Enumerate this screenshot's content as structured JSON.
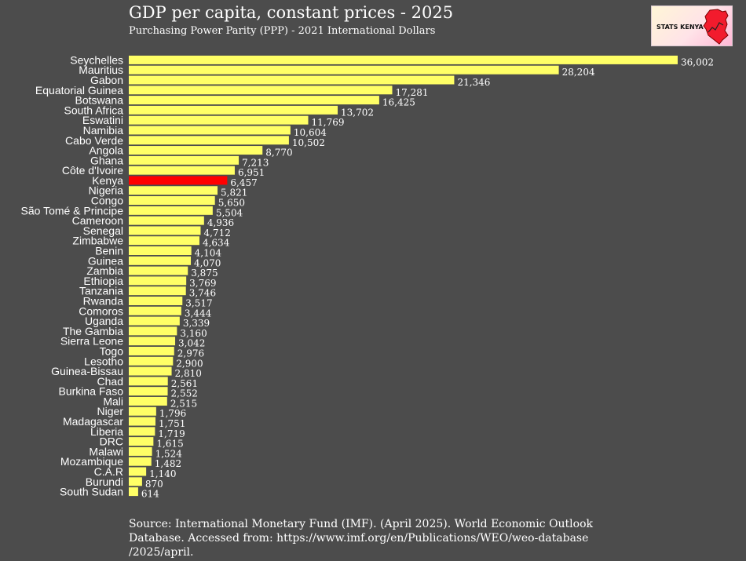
{
  "logo": {
    "text": "STATS KENYA"
  },
  "source_note": "Source: International Monetary Fund (IMF). (April 2025). World Economic Outlook Database. Accessed from: https://www.imf.org/en/Publications/WEO/weo-database /2025/april.",
  "colors": {
    "background": "#4c4c4c",
    "bar": "#ffff66",
    "highlight": "#ff0000",
    "text": "#ffffff"
  },
  "chart_data": {
    "type": "bar",
    "orientation": "horizontal",
    "title": "GDP per capita, constant prices - 2025",
    "subtitle": "Purchasing Power Parity (PPP) - 2021 International Dollars",
    "highlight": "Kenya",
    "xlim": [
      0,
      36002
    ],
    "categories": [
      "Seychelles",
      "Mauritius",
      "Gabon",
      "Equatorial Guinea",
      "Botswana",
      "South Africa",
      "Eswatini",
      "Namibia",
      "Cabo Verde",
      "Angola",
      "Ghana",
      "Côte d'Ivoire",
      "Kenya",
      "Nigeria",
      "Congo",
      "São Tomé & Principe",
      "Cameroon",
      "Senegal",
      "Zimbabwe",
      "Benin",
      "Guinea",
      "Zambia",
      "Ethiopia",
      "Tanzania",
      "Rwanda",
      "Comoros",
      "Uganda",
      "The Gambia",
      "Sierra Leone",
      "Togo",
      "Lesotho",
      "Guinea-Bissau",
      "Chad",
      "Burkina Faso",
      "Mali",
      "Niger",
      "Madagascar",
      "Liberia",
      "DRC",
      "Malawi",
      "Mozambique",
      "C.A.R",
      "Burundi",
      "South Sudan"
    ],
    "values": [
      36002,
      28204,
      21346,
      17281,
      16425,
      13702,
      11769,
      10604,
      10502,
      8770,
      7213,
      6951,
      6457,
      5821,
      5650,
      5504,
      4936,
      4712,
      4634,
      4104,
      4070,
      3875,
      3769,
      3746,
      3517,
      3444,
      3339,
      3160,
      3042,
      2976,
      2900,
      2810,
      2561,
      2552,
      2515,
      1796,
      1751,
      1719,
      1615,
      1524,
      1482,
      1140,
      870,
      614
    ],
    "value_labels": [
      "36,002",
      "28,204",
      "21,346",
      "17,281",
      "16,425",
      "13,702",
      "11,769",
      "10,604",
      "10,502",
      "8,770",
      "7,213",
      "6,951",
      "6,457",
      "5,821",
      "5,650",
      "5,504",
      "4,936",
      "4,712",
      "4,634",
      "4,104",
      "4,070",
      "3,875",
      "3,769",
      "3,746",
      "3,517",
      "3,444",
      "3,339",
      "3,160",
      "3,042",
      "2,976",
      "2,900",
      "2,810",
      "2,561",
      "2,552",
      "2,515",
      "1,796",
      "1,751",
      "1,719",
      "1,615",
      "1,524",
      "1,482",
      "1,140",
      "870",
      "614"
    ]
  }
}
